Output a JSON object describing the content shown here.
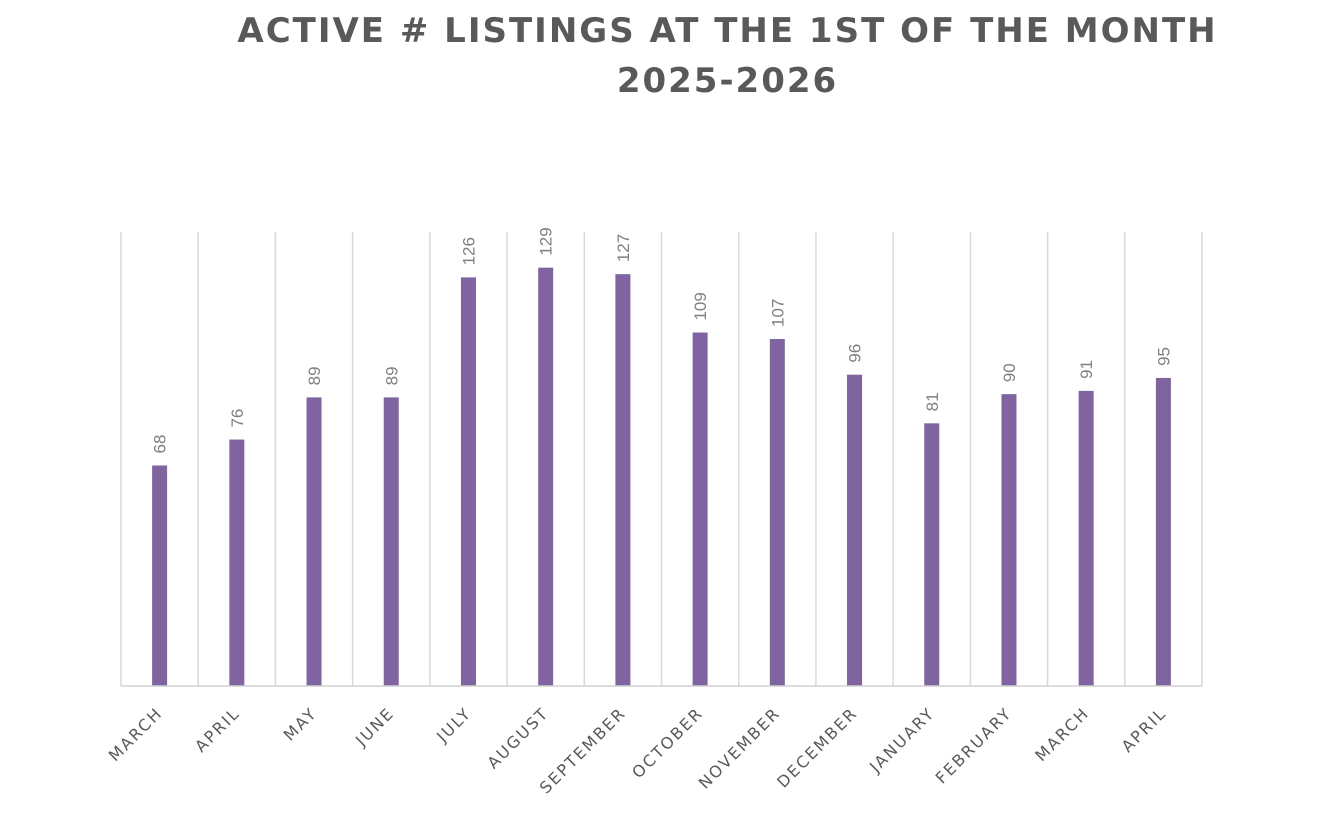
{
  "chart_data": {
    "type": "bar",
    "title": "ACTIVE # LISTINGS AT THE 1ST OF THE MONTH",
    "subtitle": "2025-2026",
    "categories": [
      "MARCH",
      "APRIL",
      "MAY",
      "JUNE",
      "JULY",
      "AUGUST",
      "SEPTEMBER",
      "OCTOBER",
      "NOVEMBER",
      "DECEMBER",
      "JANUARY",
      "FEBRUARY",
      "MARCH",
      "APRIL"
    ],
    "values": [
      68,
      76,
      89,
      89,
      126,
      129,
      127,
      109,
      107,
      96,
      81,
      90,
      91,
      95
    ],
    "data_labels": [
      "68",
      "76",
      "89",
      "89",
      "126",
      "129",
      "127",
      "109",
      "107",
      "96",
      "81",
      "90",
      "91",
      "95"
    ],
    "xlabel": "",
    "ylabel": "",
    "ylim": [
      0,
      140
    ],
    "grid": "vertical",
    "legend": "none",
    "bar_color": "#8064a2",
    "text_color": "#595959",
    "label_color": "#7f7f7f",
    "grid_color": "#d9d9d9"
  }
}
